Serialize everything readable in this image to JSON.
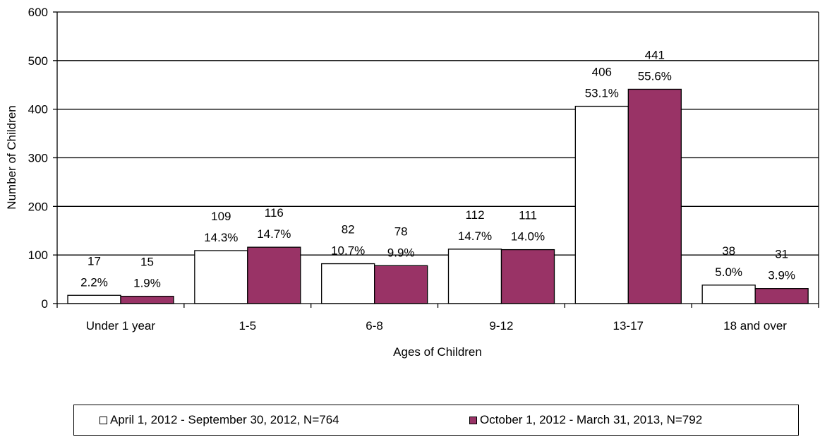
{
  "chart_data": {
    "type": "bar",
    "xlabel": "Ages of Children",
    "ylabel": "Number of Children",
    "ylim": [
      0,
      600
    ],
    "yticks": [
      "0",
      "100",
      "200",
      "300",
      "400",
      "500",
      "600"
    ],
    "grid": true,
    "legend_position": "bottom",
    "categories": [
      "Under 1 year",
      "1-5",
      "6-8",
      "9-12",
      "13-17",
      "18 and over"
    ],
    "series": [
      {
        "name": "April 1, 2012 - September 30, 2012, N=764",
        "color": "#ffffff",
        "values": [
          17,
          109,
          82,
          112,
          406,
          38
        ],
        "value_labels": [
          "17",
          "109",
          "82",
          "112",
          "406",
          "38"
        ],
        "percent_labels": [
          "2.2%",
          "14.3%",
          "10.7%",
          "14.7%",
          "53.1%",
          "5.0%"
        ]
      },
      {
        "name": "October 1, 2012 - March 31, 2013, N=792",
        "color": "#993366",
        "values": [
          15,
          116,
          78,
          111,
          441,
          31
        ],
        "value_labels": [
          "15",
          "116",
          "78",
          "111",
          "441",
          "31"
        ],
        "percent_labels": [
          "1.9%",
          "14.7%",
          "9.9%",
          "14.0%",
          "55.6%",
          "3.9%"
        ]
      }
    ]
  }
}
